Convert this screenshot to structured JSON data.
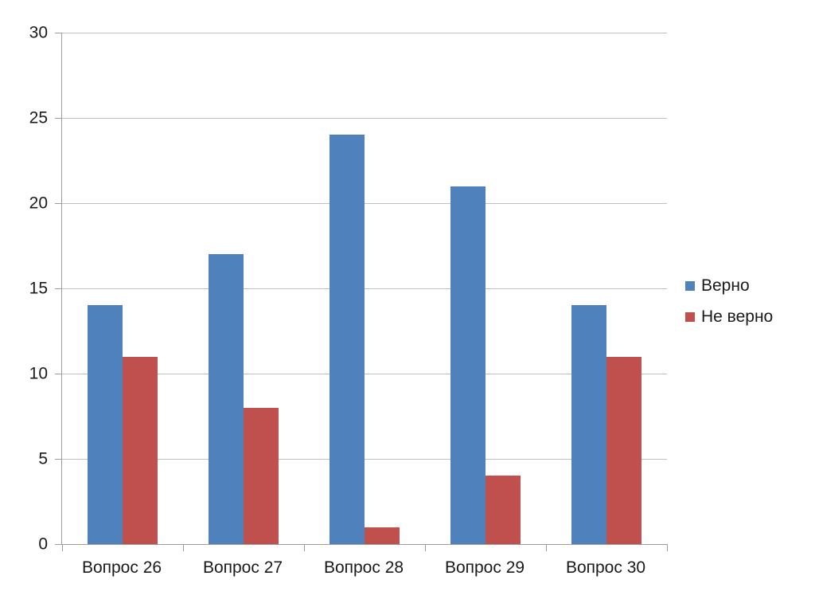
{
  "chart_data": {
    "type": "bar",
    "categories": [
      "Вопрос 26",
      "Вопрос 27",
      "Вопрос 28",
      "Вопрос 29",
      "Вопрос 30"
    ],
    "series": [
      {
        "name": "Верно",
        "color": "#4F81BD",
        "values": [
          14,
          17,
          24,
          21,
          14
        ]
      },
      {
        "name": "Не верно",
        "color": "#C0504D",
        "values": [
          11,
          8,
          1,
          4,
          11
        ]
      }
    ],
    "title": "",
    "xlabel": "",
    "ylabel": "",
    "ylim": [
      0,
      30
    ],
    "ytick_step": 5,
    "ytick_labels": [
      "0",
      "5",
      "10",
      "15",
      "20",
      "25",
      "30"
    ],
    "grid": "horizontal",
    "legend_position": "right"
  },
  "colors": {
    "background": "#FFFFFF",
    "gridline": "#BFBFBF",
    "axis": "#9C9C9C",
    "text": "#1A1A1A"
  }
}
